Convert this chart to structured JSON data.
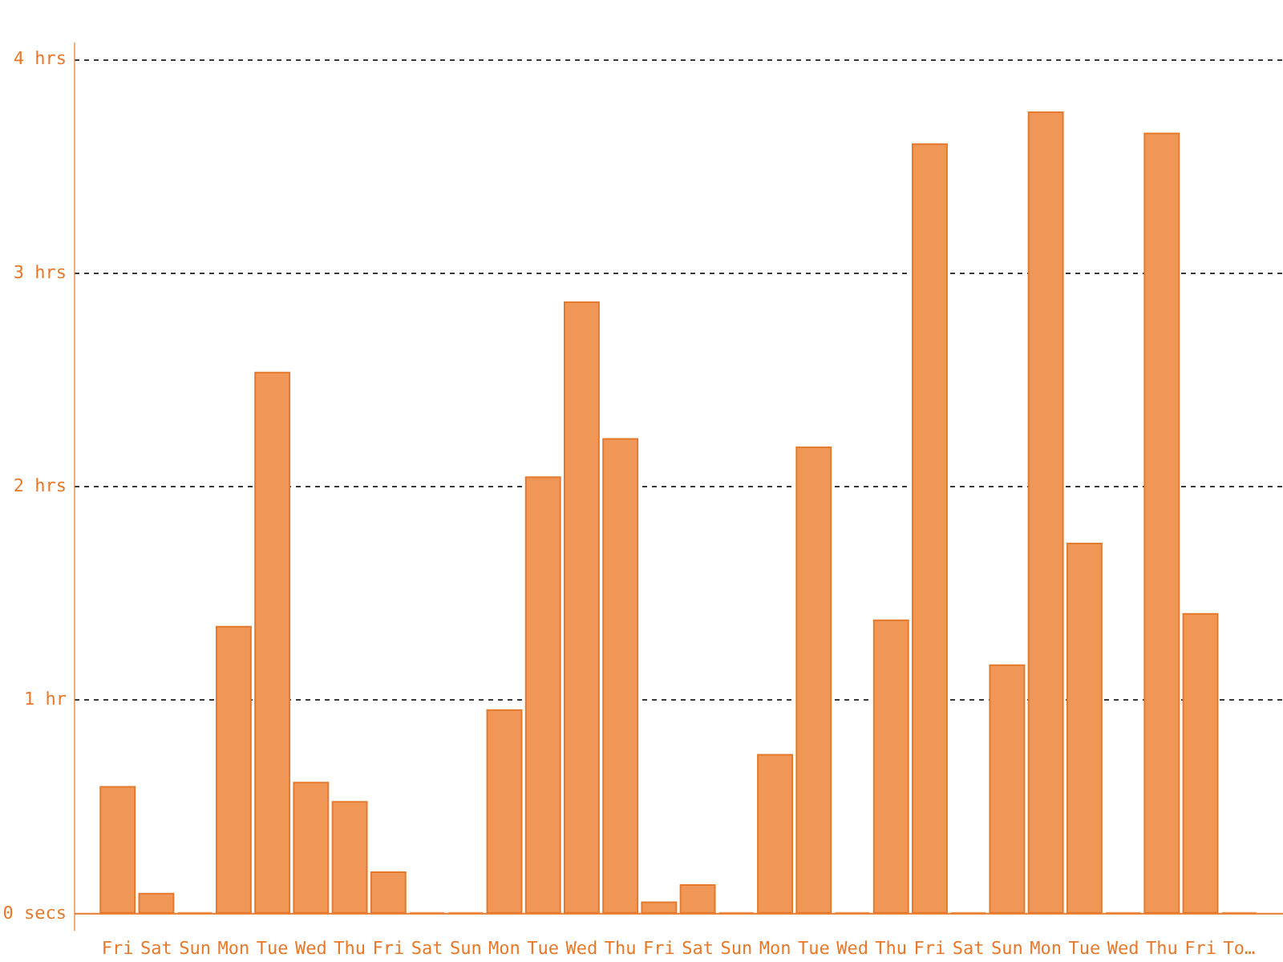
{
  "chart_data": {
    "type": "bar",
    "categories": [
      "Fri",
      "Sat",
      "Sun",
      "Mon",
      "Tue",
      "Wed",
      "Thu",
      "Fri",
      "Sat",
      "Sun",
      "Mon",
      "Tue",
      "Wed",
      "Thu",
      "Fri",
      "Sat",
      "Sun",
      "Mon",
      "Tue",
      "Wed",
      "Thu",
      "Fri",
      "Sat",
      "Sun",
      "Mon",
      "Tue",
      "Wed",
      "Thu",
      "Fri",
      "To…"
    ],
    "values": [
      0.59,
      0.09,
      0,
      1.34,
      2.53,
      0.61,
      0.52,
      0.19,
      0,
      0,
      0.95,
      2.04,
      2.86,
      2.22,
      0.05,
      0.13,
      0,
      0.74,
      2.18,
      0,
      1.37,
      3.6,
      0,
      1.16,
      3.75,
      1.73,
      0,
      3.65,
      1.4,
      0
    ],
    "color": "#f09657",
    "ylim": [
      -0.08,
      4.08
    ],
    "yticks": [
      {
        "value": 0,
        "label": "0 secs"
      },
      {
        "value": 1,
        "label": "1 hr"
      },
      {
        "value": 2,
        "label": "2 hrs"
      },
      {
        "value": 3,
        "label": "3 hrs"
      },
      {
        "value": 4,
        "label": "4 hrs"
      }
    ],
    "grid": "y"
  }
}
